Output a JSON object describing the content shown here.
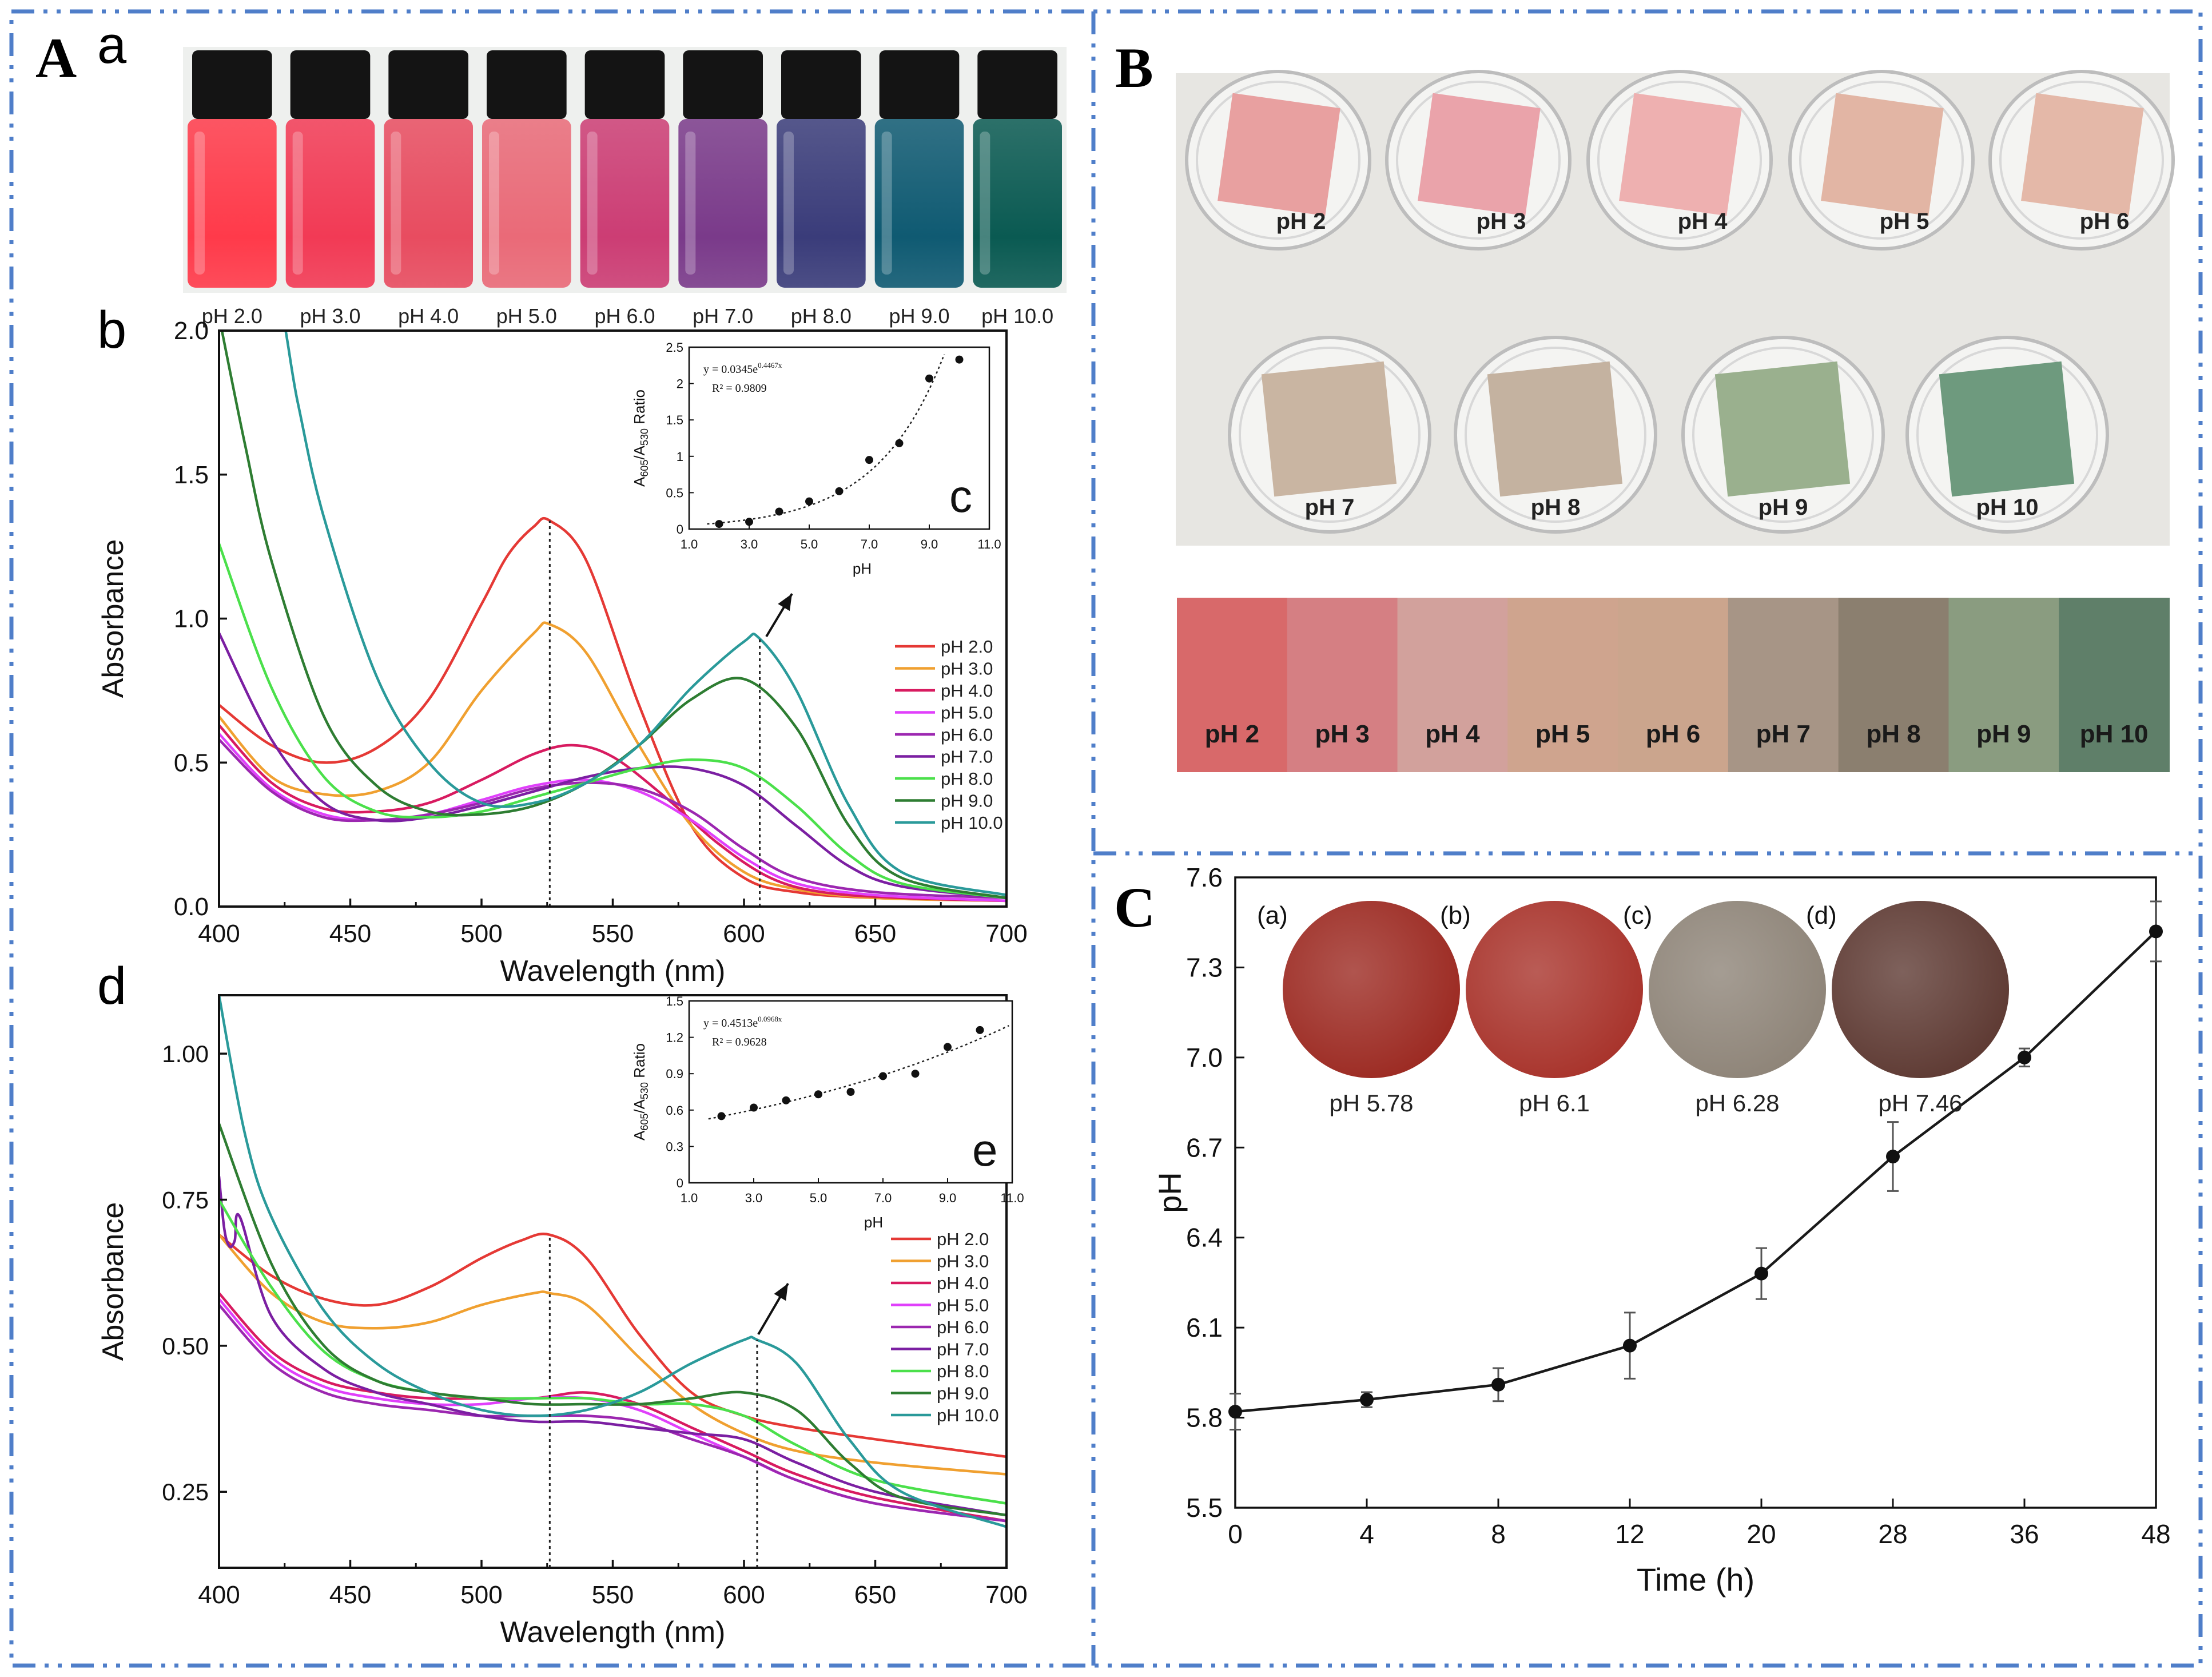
{
  "colors": {
    "frame": "#4f7ec9",
    "series": [
      "#e53935",
      "#f0a030",
      "#d81b60",
      "#e040fb",
      "#9c27b0",
      "#7b1fa2",
      "#4be04b",
      "#2e7d32",
      "#2a9a9a"
    ],
    "panel_c_line": "#1a1a1a"
  },
  "panels": {
    "A": {
      "letter": "A",
      "sub_a": "a",
      "vial_labels": [
        "pH 2.0",
        "pH 3.0",
        "pH 4.0",
        "pH 5.0",
        "pH 6.0",
        "pH 7.0",
        "pH 8.0",
        "pH 9.0",
        "pH 10.0"
      ],
      "vial_colors": [
        "#ff3a4a",
        "#f23a55",
        "#e84c60",
        "#ea6a78",
        "#cc3d74",
        "#7a3a8a",
        "#3a3c7a",
        "#0f5a72",
        "#0a5a52"
      ],
      "sub_b": "b",
      "sub_c": "c",
      "sub_d": "d",
      "sub_e": "e"
    },
    "B": {
      "letter": "B",
      "dish_labels": [
        "pH 2",
        "pH 3",
        "pH 4",
        "pH 5",
        "pH 6",
        "pH 7",
        "pH 8",
        "pH 9",
        "pH 10"
      ],
      "film_colors": [
        "#e8a0a0",
        "#eaa3aa",
        "#eeb0b0",
        "#e2b5a4",
        "#e4b8a8",
        "#c9b5a2",
        "#c4b2a0",
        "#9ab08e",
        "#6e9a7e"
      ],
      "swatch_labels": [
        "pH 2",
        "pH 3",
        "pH 4",
        "pH 5",
        "pH 6",
        "pH 7",
        "pH 8",
        "pH 9",
        "pH 10"
      ],
      "swatch_colors": [
        "#d8696a",
        "#d57f83",
        "#d2a19c",
        "#cfa48e",
        "#cba58d",
        "#a79586",
        "#8b7f6f",
        "#8a9c80",
        "#5f7f69"
      ]
    },
    "C": {
      "letter": "C",
      "photo_letters": [
        "(a)",
        "(b)",
        "(c)",
        "(d)"
      ],
      "photo_labels": [
        "pH 5.78",
        "pH 6.1",
        "pH 6.28",
        "pH 7.46"
      ],
      "photo_colors": [
        "#9c2a22",
        "#a8332b",
        "#8e8478",
        "#5e3a33"
      ]
    }
  },
  "chart_data": [
    {
      "id": "Ab",
      "type": "line",
      "xlabel": "Wavelength (nm)",
      "ylabel": "Absorbance",
      "xlim": [
        400,
        700
      ],
      "ylim": [
        0.0,
        2.0
      ],
      "xticks": [
        "400",
        "450",
        "500",
        "550",
        "600",
        "650",
        "700"
      ],
      "yticks": [
        "0.0",
        "0.5",
        "1.0",
        "1.5",
        "2.0"
      ],
      "markers_x": [
        526,
        606
      ],
      "series": [
        {
          "name": "pH 2.0",
          "x": [
            400,
            420,
            440,
            460,
            480,
            500,
            510,
            520,
            526,
            540,
            560,
            580,
            600,
            620,
            650,
            700
          ],
          "y": [
            0.7,
            0.56,
            0.5,
            0.55,
            0.72,
            1.05,
            1.22,
            1.32,
            1.34,
            1.2,
            0.7,
            0.28,
            0.1,
            0.05,
            0.03,
            0.02
          ]
        },
        {
          "name": "pH 3.0",
          "x": [
            400,
            420,
            440,
            460,
            480,
            500,
            520,
            526,
            540,
            560,
            580,
            600,
            620,
            650,
            700
          ],
          "y": [
            0.66,
            0.45,
            0.39,
            0.4,
            0.5,
            0.75,
            0.95,
            0.98,
            0.88,
            0.56,
            0.28,
            0.12,
            0.06,
            0.03,
            0.02
          ]
        },
        {
          "name": "pH 4.0",
          "x": [
            400,
            420,
            440,
            460,
            480,
            500,
            520,
            535,
            550,
            570,
            590,
            610,
            630,
            660,
            700
          ],
          "y": [
            0.63,
            0.43,
            0.34,
            0.33,
            0.36,
            0.44,
            0.53,
            0.56,
            0.52,
            0.38,
            0.22,
            0.1,
            0.05,
            0.03,
            0.02
          ]
        },
        {
          "name": "pH 5.0",
          "x": [
            400,
            420,
            440,
            460,
            480,
            500,
            520,
            540,
            560,
            580,
            600,
            620,
            650,
            700
          ],
          "y": [
            0.6,
            0.41,
            0.32,
            0.3,
            0.32,
            0.37,
            0.42,
            0.44,
            0.4,
            0.3,
            0.17,
            0.08,
            0.04,
            0.02
          ]
        },
        {
          "name": "pH 6.0",
          "x": [
            400,
            420,
            440,
            460,
            480,
            500,
            520,
            540,
            560,
            580,
            600,
            620,
            650,
            700
          ],
          "y": [
            0.58,
            0.4,
            0.31,
            0.3,
            0.32,
            0.36,
            0.41,
            0.43,
            0.41,
            0.33,
            0.2,
            0.1,
            0.05,
            0.03
          ]
        },
        {
          "name": "pH 7.0",
          "x": [
            400,
            420,
            440,
            460,
            480,
            500,
            520,
            540,
            560,
            580,
            600,
            620,
            640,
            660,
            700
          ],
          "y": [
            0.95,
            0.58,
            0.36,
            0.3,
            0.31,
            0.35,
            0.4,
            0.45,
            0.48,
            0.48,
            0.42,
            0.28,
            0.14,
            0.07,
            0.03
          ]
        },
        {
          "name": "pH 8.0",
          "x": [
            400,
            420,
            440,
            460,
            480,
            500,
            520,
            540,
            560,
            580,
            600,
            620,
            640,
            660,
            700
          ],
          "y": [
            1.26,
            0.76,
            0.45,
            0.33,
            0.31,
            0.33,
            0.38,
            0.43,
            0.48,
            0.51,
            0.48,
            0.35,
            0.18,
            0.08,
            0.03
          ]
        },
        {
          "name": "pH 9.0",
          "x": [
            400,
            410,
            420,
            440,
            460,
            480,
            500,
            520,
            540,
            560,
            580,
            600,
            620,
            640,
            660,
            700
          ],
          "y": [
            2.05,
            1.6,
            1.2,
            0.66,
            0.42,
            0.33,
            0.32,
            0.35,
            0.43,
            0.56,
            0.72,
            0.79,
            0.62,
            0.28,
            0.1,
            0.03
          ]
        },
        {
          "name": "pH 10.0",
          "x": [
            400,
            420,
            430,
            440,
            460,
            480,
            500,
            520,
            540,
            560,
            580,
            600,
            606,
            620,
            640,
            660,
            700
          ],
          "y": [
            2.4,
            2.2,
            1.75,
            1.35,
            0.8,
            0.5,
            0.36,
            0.36,
            0.43,
            0.56,
            0.76,
            0.92,
            0.93,
            0.75,
            0.35,
            0.12,
            0.04
          ]
        }
      ]
    },
    {
      "id": "Ac",
      "type": "scatter",
      "xlabel": "pH",
      "ylabel": "A605/A530 Ratio",
      "ylabel_parts": {
        "a": "A",
        "s1": "605",
        "sep": "/A",
        "s2": "530",
        "rest": " Ratio"
      },
      "xlim": [
        1.0,
        11.0
      ],
      "ylim": [
        0,
        2.5
      ],
      "xticks": [
        "1.0",
        "3.0",
        "5.0",
        "7.0",
        "9.0",
        "11.0"
      ],
      "yticks": [
        "0",
        "0.5",
        "1",
        "1.5",
        "2",
        "2.5"
      ],
      "equation": {
        "base": "y = 0.0345e",
        "exp": "0.4467x"
      },
      "r2": "R² = 0.9809",
      "fit": {
        "a": 0.0345,
        "b": 0.4467
      },
      "points": {
        "x": [
          2,
          3,
          4,
          5,
          6,
          7,
          8,
          9,
          10
        ],
        "y": [
          0.07,
          0.1,
          0.24,
          0.38,
          0.52,
          0.95,
          1.18,
          2.07,
          2.33
        ]
      }
    },
    {
      "id": "Ad",
      "type": "line",
      "xlabel": "Wavelength (nm)",
      "ylabel": "Absorbance",
      "xlim": [
        400,
        700
      ],
      "ylim": [
        0.12,
        1.1
      ],
      "xticks": [
        "400",
        "450",
        "500",
        "550",
        "600",
        "650",
        "700"
      ],
      "yticks": [
        "0.25",
        "0.50",
        "0.75",
        "1.00"
      ],
      "markers_x": [
        526,
        605
      ],
      "series": [
        {
          "name": "pH 2.0",
          "x": [
            400,
            420,
            440,
            460,
            480,
            500,
            515,
            526,
            540,
            560,
            580,
            600,
            620,
            650,
            700
          ],
          "y": [
            0.69,
            0.62,
            0.58,
            0.57,
            0.6,
            0.65,
            0.68,
            0.69,
            0.65,
            0.52,
            0.42,
            0.38,
            0.36,
            0.34,
            0.31
          ]
        },
        {
          "name": "pH 3.0",
          "x": [
            400,
            420,
            440,
            460,
            480,
            500,
            520,
            526,
            540,
            560,
            580,
            600,
            620,
            650,
            700
          ],
          "y": [
            0.69,
            0.59,
            0.54,
            0.53,
            0.54,
            0.57,
            0.59,
            0.59,
            0.57,
            0.48,
            0.4,
            0.35,
            0.32,
            0.3,
            0.28
          ]
        },
        {
          "name": "pH 4.0",
          "x": [
            400,
            420,
            440,
            460,
            480,
            500,
            520,
            540,
            560,
            580,
            600,
            620,
            650,
            700
          ],
          "y": [
            0.59,
            0.49,
            0.44,
            0.42,
            0.41,
            0.41,
            0.41,
            0.42,
            0.4,
            0.36,
            0.32,
            0.28,
            0.24,
            0.2
          ]
        },
        {
          "name": "pH 5.0",
          "x": [
            400,
            420,
            440,
            460,
            480,
            500,
            520,
            540,
            560,
            580,
            600,
            620,
            650,
            700
          ],
          "y": [
            0.58,
            0.48,
            0.43,
            0.41,
            0.4,
            0.4,
            0.41,
            0.41,
            0.39,
            0.35,
            0.31,
            0.27,
            0.23,
            0.2
          ]
        },
        {
          "name": "pH 6.0",
          "x": [
            400,
            420,
            440,
            460,
            480,
            500,
            520,
            540,
            560,
            580,
            600,
            620,
            650,
            700
          ],
          "y": [
            0.57,
            0.47,
            0.42,
            0.4,
            0.39,
            0.38,
            0.38,
            0.38,
            0.37,
            0.34,
            0.31,
            0.27,
            0.23,
            0.2
          ]
        },
        {
          "name": "pH 7.0",
          "x": [
            400,
            402,
            404,
            406,
            408,
            420,
            440,
            460,
            480,
            500,
            520,
            540,
            560,
            580,
            600,
            620,
            650,
            700
          ],
          "y": [
            0.79,
            0.7,
            0.67,
            0.68,
            0.72,
            0.55,
            0.46,
            0.42,
            0.4,
            0.38,
            0.37,
            0.37,
            0.36,
            0.35,
            0.34,
            0.3,
            0.25,
            0.21
          ]
        },
        {
          "name": "pH 8.0",
          "x": [
            400,
            420,
            440,
            460,
            480,
            500,
            520,
            540,
            560,
            580,
            600,
            620,
            650,
            700
          ],
          "y": [
            0.75,
            0.6,
            0.49,
            0.44,
            0.42,
            0.41,
            0.41,
            0.41,
            0.4,
            0.4,
            0.38,
            0.33,
            0.27,
            0.23
          ]
        },
        {
          "name": "pH 9.0",
          "x": [
            400,
            420,
            440,
            460,
            480,
            500,
            520,
            540,
            560,
            580,
            600,
            620,
            640,
            660,
            700
          ],
          "y": [
            0.88,
            0.64,
            0.5,
            0.44,
            0.42,
            0.41,
            0.4,
            0.4,
            0.4,
            0.41,
            0.42,
            0.39,
            0.3,
            0.24,
            0.21
          ]
        },
        {
          "name": "pH 10.0",
          "x": [
            400,
            410,
            420,
            440,
            460,
            480,
            500,
            520,
            540,
            560,
            580,
            600,
            605,
            620,
            640,
            660,
            700
          ],
          "y": [
            1.1,
            0.86,
            0.72,
            0.56,
            0.47,
            0.42,
            0.39,
            0.38,
            0.39,
            0.42,
            0.47,
            0.51,
            0.51,
            0.47,
            0.34,
            0.25,
            0.19
          ]
        }
      ]
    },
    {
      "id": "Ae",
      "type": "scatter",
      "xlabel": "pH",
      "ylabel": "A605/A530 Ratio",
      "ylabel_parts": {
        "a": "A",
        "s1": "605",
        "sep": "/A",
        "s2": "530",
        "rest": " Ratio"
      },
      "xlim": [
        1.0,
        11.0
      ],
      "ylim": [
        0,
        1.5
      ],
      "xticks": [
        "1.0",
        "3.0",
        "5.0",
        "7.0",
        "9.0",
        "11.0"
      ],
      "yticks": [
        "0",
        "0.3",
        "0.6",
        "0.9",
        "1.2",
        "1.5"
      ],
      "equation": {
        "base": "y = 0.4513e",
        "exp": "0.0968x"
      },
      "r2": "R² = 0.9628",
      "fit": {
        "a": 0.4513,
        "b": 0.0968
      },
      "points": {
        "x": [
          2,
          3,
          4,
          5,
          6,
          7,
          8,
          9,
          10
        ],
        "y": [
          0.55,
          0.62,
          0.68,
          0.73,
          0.75,
          0.88,
          0.9,
          1.12,
          1.26
        ]
      }
    },
    {
      "id": "C",
      "type": "line",
      "xlabel": "Time (h)",
      "ylabel": "pH",
      "ylim": [
        5.5,
        7.6
      ],
      "categories": [
        "0",
        "4",
        "8",
        "12",
        "20",
        "28",
        "36",
        "48"
      ],
      "yticks": [
        "5.5",
        "5.8",
        "6.1",
        "6.4",
        "6.7",
        "7.0",
        "7.3",
        "7.6"
      ],
      "values": [
        5.82,
        5.86,
        5.91,
        6.04,
        6.28,
        6.67,
        7.0,
        7.42
      ],
      "errors": [
        0.06,
        0.025,
        0.055,
        0.11,
        0.085,
        0.115,
        0.03,
        0.1
      ]
    }
  ]
}
